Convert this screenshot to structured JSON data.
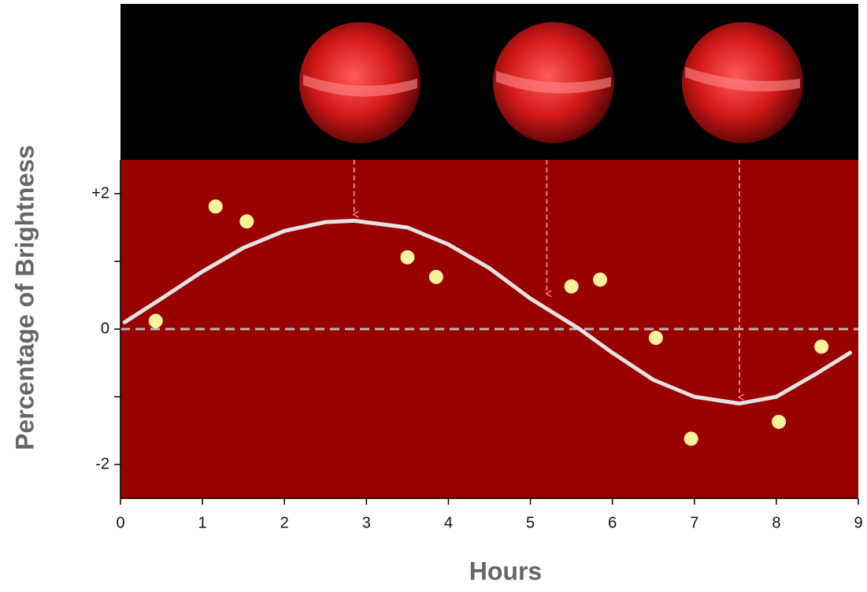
{
  "chart_data": {
    "type": "scatter",
    "x_label": "Hours",
    "y_label": "Percentage of Brightness",
    "xlim": [
      0,
      9
    ],
    "xticks": [
      0,
      1,
      2,
      3,
      4,
      5,
      6,
      7,
      8,
      9
    ],
    "ylim": [
      -2.5,
      2.5
    ],
    "yticks": [
      {
        "value": 2,
        "label": "+2"
      },
      0,
      -2
    ],
    "yminorticks": [
      1,
      -1
    ],
    "zero_line": true,
    "background": "#990000",
    "points": {
      "color": "#fdf29c",
      "x": [
        0.43,
        1.16,
        1.54,
        3.5,
        3.85,
        5.5,
        5.85,
        6.53,
        6.96,
        8.03,
        8.55
      ],
      "y": [
        0.12,
        1.81,
        1.59,
        1.06,
        0.77,
        0.63,
        0.73,
        -0.13,
        -1.62,
        -1.37,
        -0.26
      ]
    },
    "fit": {
      "color": "#e6e2e2",
      "x": [
        0.05,
        0.5,
        1,
        1.5,
        2,
        2.5,
        2.85,
        3.5,
        4,
        4.5,
        5,
        5.6,
        6,
        6.5,
        7,
        7.55,
        8,
        8.5,
        8.9
      ],
      "y": [
        0.1,
        0.45,
        0.85,
        1.2,
        1.45,
        1.58,
        1.6,
        1.5,
        1.25,
        0.9,
        0.45,
        0,
        -0.35,
        -0.75,
        -1.0,
        -1.1,
        -1.0,
        -0.65,
        -0.35
      ]
    },
    "arrows": [
      {
        "x": 2.85,
        "y": 1.6
      },
      {
        "x": 5.2,
        "y": 0.43
      },
      {
        "x": 7.55,
        "y": -1.1
      }
    ]
  }
}
